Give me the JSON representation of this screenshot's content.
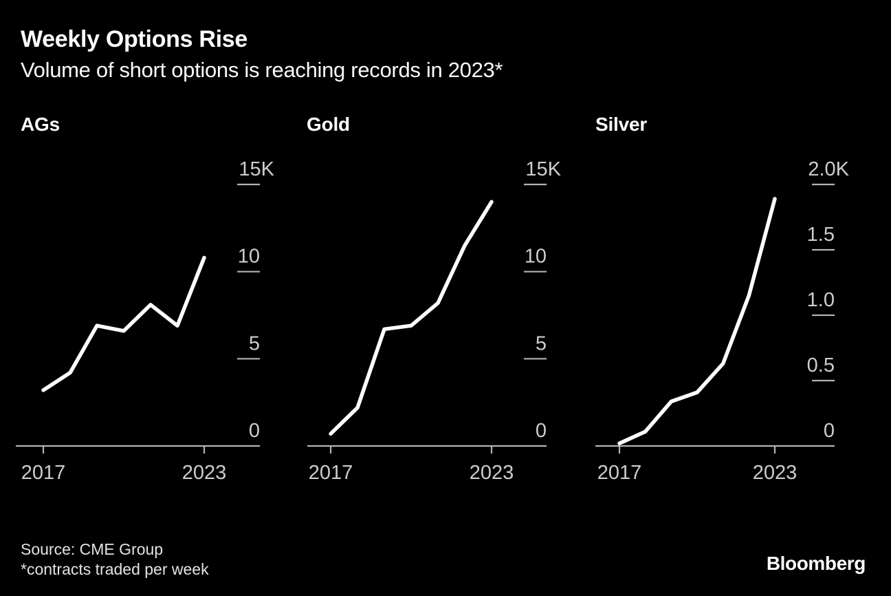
{
  "title": "Weekly Options Rise",
  "subtitle": "Volume of short options is reaching records in 2023*",
  "footer": {
    "source_line": "Source: CME Group",
    "footnote": "*contracts traded per week",
    "brand": "Bloomberg"
  },
  "colors": {
    "background": "#000000",
    "data_line": "#ffffff",
    "axis": "#b3b3b3",
    "tick_label": "#cdcdcd",
    "heading_text": "#ffffff",
    "footer_text": "#e3e3e3"
  },
  "chart_data": [
    {
      "type": "line",
      "title": "AGs",
      "unit": "thousands of contracts per week",
      "x": [
        2017,
        2018,
        2019,
        2020,
        2021,
        2022,
        2023
      ],
      "values": [
        3.2,
        4.2,
        6.9,
        6.6,
        8.1,
        6.9,
        10.8
      ],
      "ylim": [
        0,
        15
      ],
      "yticks": [
        {
          "label": "15K",
          "value": 15
        },
        {
          "label": "10",
          "value": 10
        },
        {
          "label": "5",
          "value": 5
        },
        {
          "label": "0",
          "value": 0
        }
      ],
      "xticks": [
        {
          "label": "2017",
          "value": 2017
        },
        {
          "label": "2023",
          "value": 2023
        }
      ],
      "grid": false,
      "legend": false
    },
    {
      "type": "line",
      "title": "Gold",
      "unit": "thousands of contracts per week",
      "x": [
        2017,
        2018,
        2019,
        2020,
        2021,
        2022,
        2023
      ],
      "values": [
        0.7,
        2.2,
        6.7,
        6.9,
        8.2,
        11.5,
        14.0
      ],
      "ylim": [
        0,
        15
      ],
      "yticks": [
        {
          "label": "15K",
          "value": 15
        },
        {
          "label": "10",
          "value": 10
        },
        {
          "label": "5",
          "value": 5
        },
        {
          "label": "0",
          "value": 0
        }
      ],
      "xticks": [
        {
          "label": "2017",
          "value": 2017
        },
        {
          "label": "2023",
          "value": 2023
        }
      ],
      "grid": false,
      "legend": false
    },
    {
      "type": "line",
      "title": "Silver",
      "unit": "thousands of contracts per week",
      "x": [
        2017,
        2018,
        2019,
        2020,
        2021,
        2022,
        2023
      ],
      "values": [
        0.02,
        0.11,
        0.34,
        0.41,
        0.63,
        1.15,
        1.89
      ],
      "ylim": [
        0,
        2.0
      ],
      "yticks": [
        {
          "label": "2.0K",
          "value": 2.0
        },
        {
          "label": "1.5",
          "value": 1.5
        },
        {
          "label": "1.0",
          "value": 1.0
        },
        {
          "label": "0.5",
          "value": 0.5
        },
        {
          "label": "0",
          "value": 0
        }
      ],
      "xticks": [
        {
          "label": "2017",
          "value": 2017
        },
        {
          "label": "2023",
          "value": 2023
        }
      ],
      "grid": false,
      "legend": false
    }
  ]
}
